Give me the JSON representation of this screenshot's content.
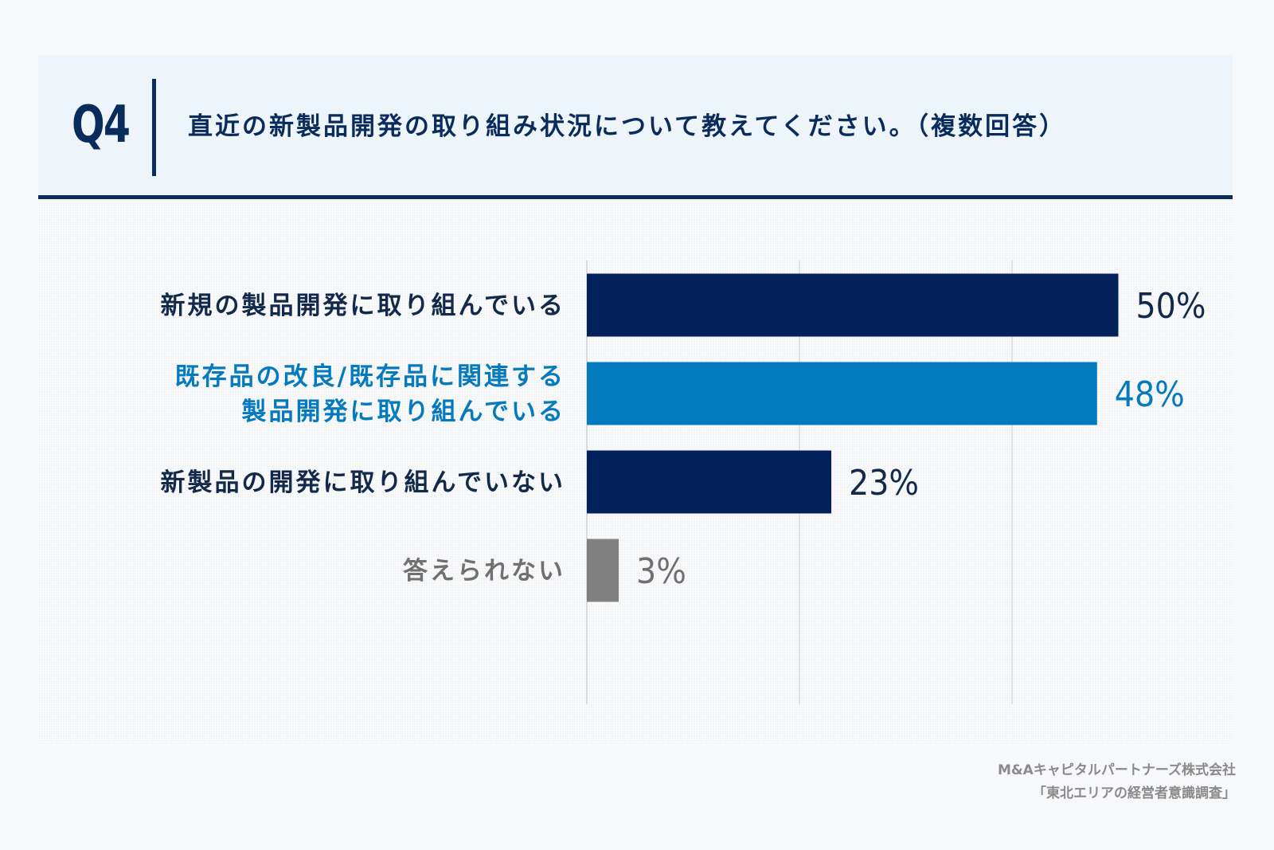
{
  "header": {
    "question_number": "Q4",
    "question_text": "直近の新製品開発の取り組み状況について教えてください。（複数回答）"
  },
  "colors": {
    "navy": "#0a2c5c",
    "bar_dark": "#02215a",
    "bar_blue": "#0379be",
    "bar_gray": "#808080",
    "label_dark": "#13294b",
    "label_gray": "#707070"
  },
  "chart_data": {
    "type": "bar",
    "orientation": "horizontal",
    "title": "直近の新製品開発の取り組み状況について教えてください。（複数回答）",
    "xlim": [
      0,
      60
    ],
    "grid": true,
    "gridlines_at": [
      0,
      20,
      40
    ],
    "unit": "%",
    "categories": [
      [
        "新規の製品開発に取り組んでいる"
      ],
      [
        "既存品の改良/既存品に関連する",
        "製品開発に取り組んでいる"
      ],
      [
        "新製品の開発に取り組んでいない"
      ],
      [
        "答えられない"
      ]
    ],
    "values": [
      50,
      48,
      23,
      3
    ],
    "value_labels": [
      "50%",
      "48%",
      "23%",
      "3%"
    ],
    "bar_color_keys": [
      "bar_dark",
      "bar_blue",
      "bar_dark",
      "bar_gray"
    ],
    "label_color_keys": [
      "label_dark",
      "bar_blue",
      "label_dark",
      "label_gray"
    ]
  },
  "source": {
    "line1": "M&Aキャピタルパートナーズ株式会社",
    "line2": "「東北エリアの経営者意識調査」"
  }
}
